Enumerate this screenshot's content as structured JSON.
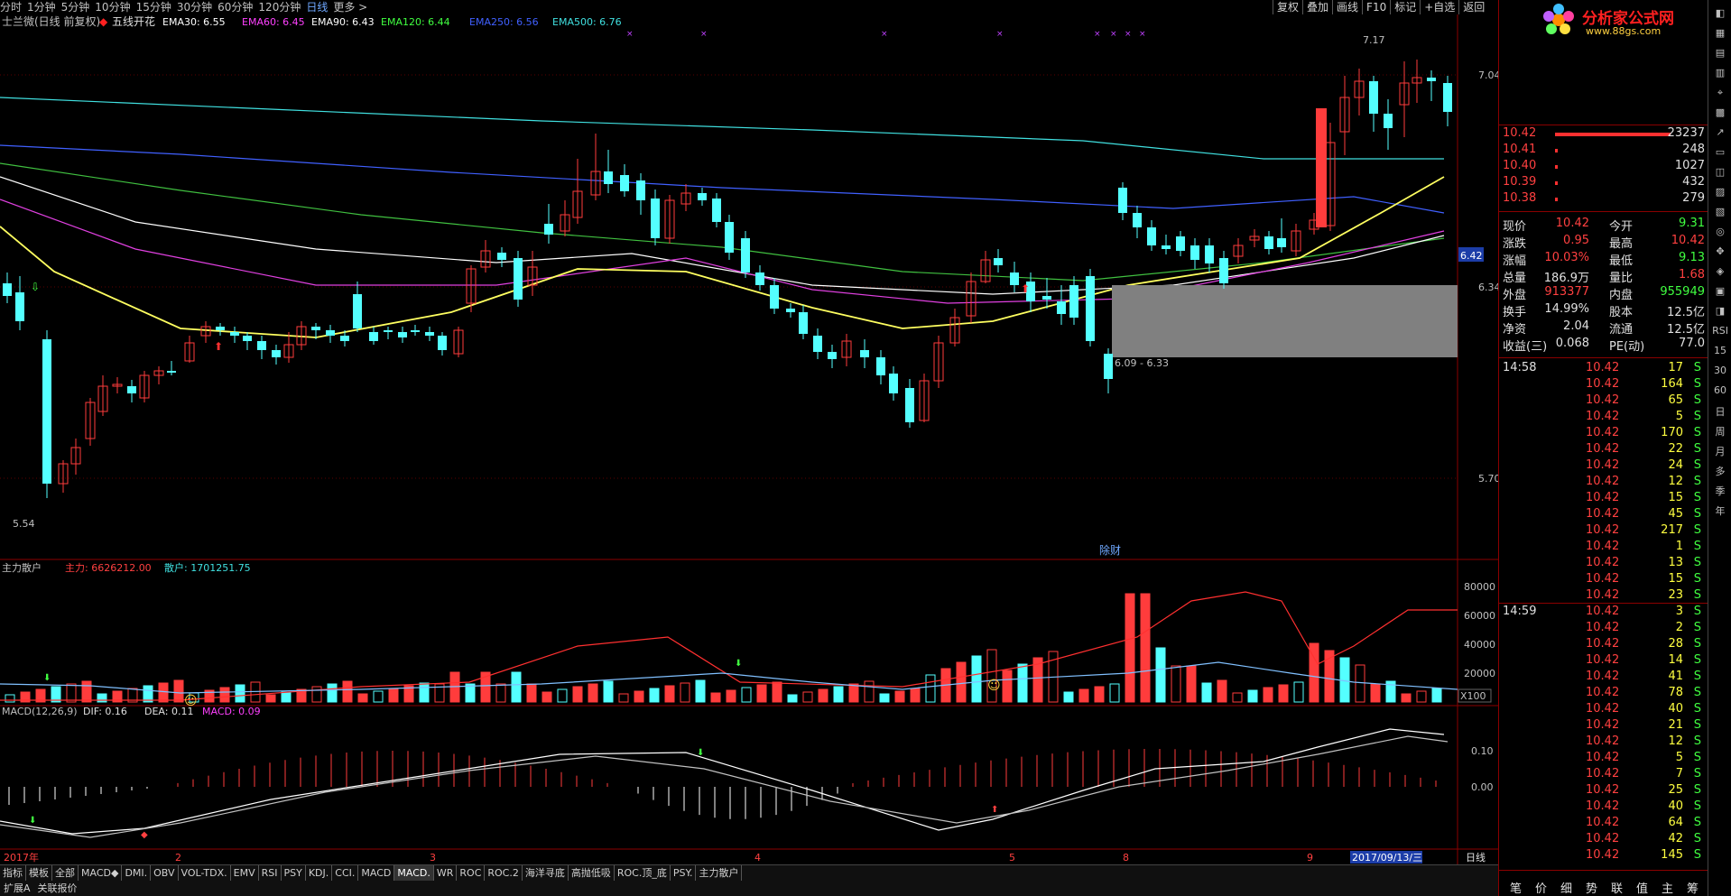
{
  "toolbar": {
    "periods": [
      "分时",
      "1分钟",
      "5分钟",
      "10分钟",
      "15分钟",
      "30分钟",
      "60分钟",
      "120分钟",
      "日线",
      "更多 >"
    ],
    "active_period": "日线",
    "right_buttons": [
      "复权",
      "叠加",
      "画线",
      "F10",
      "标记",
      "+自选",
      "返回"
    ]
  },
  "main": {
    "title": "士兰微(日线 前复权)",
    "indicator_name": "五线开花",
    "ema": [
      {
        "label": "EMA30: 6.55",
        "color": "#ffffff"
      },
      {
        "label": "EMA60: 6.45",
        "color": "#ff40ff"
      },
      {
        "label": "EMA90: 6.43",
        "color": "#ffffff"
      },
      {
        "label": "EMA120: 6.44",
        "color": "#40ff40"
      },
      {
        "label": "EMA250: 6.56",
        "color": "#4060ff"
      },
      {
        "label": "EMA500: 6.76",
        "color": "#40e0e0"
      }
    ],
    "price_ticks": [
      "7.04",
      "6.34",
      "5.70"
    ],
    "current_price_tag": "6.42",
    "low_label": "5.54",
    "high_label": "7.17",
    "range_label": "6.09 - 6.33",
    "event_label": "除财"
  },
  "sub1": {
    "name": "主力散户",
    "zhuli": "主力: 6626212.00",
    "sanhu": "散户: 1701251.75",
    "ticks": [
      "80000",
      "60000",
      "40000",
      "20000"
    ],
    "unit": "X100"
  },
  "sub2": {
    "name": "MACD(12,26,9)",
    "dif": "DIF: 0.16",
    "dea": "DEA: 0.11",
    "macd": "MACD: 0.09",
    "ticks": [
      "0.10",
      "0.00"
    ]
  },
  "xaxis": {
    "labels": [
      {
        "text": "2017年"
      },
      {
        "text": "2"
      },
      {
        "text": "3"
      },
      {
        "text": "4"
      },
      {
        "text": "5"
      },
      {
        "text": "8"
      },
      {
        "text": "9"
      }
    ],
    "cursor_date": "2017/09/13/三",
    "period_label": "日线"
  },
  "bottom_tabs": [
    "指标",
    "模板",
    "全部",
    "MACD◆",
    "DMI.",
    "OBV",
    "VOL-TDX.",
    "EMV",
    "RSI",
    "PSY",
    "KDJ.",
    "CCI.",
    "MACD",
    "MACD.",
    "WR",
    "ROC",
    "ROC.2",
    "海洋寻底",
    "高抛低吸",
    "ROC.顶_底",
    "PSY.",
    "主力散户"
  ],
  "bottom2": [
    "扩展A",
    "关联报价"
  ],
  "quote": {
    "logo_text": "分析家公式网",
    "logo_url": "www.88gs.com",
    "sell_orders": [
      {
        "price": "10.42",
        "vol": "23237"
      },
      {
        "price": "10.41",
        "vol": "248"
      },
      {
        "price": "10.40",
        "vol": "1027"
      },
      {
        "price": "10.39",
        "vol": "432"
      },
      {
        "price": "10.38",
        "vol": "279"
      }
    ],
    "stats": [
      {
        "k1": "现价",
        "v1": "10.42",
        "k2": "今开",
        "v2": "9.31"
      },
      {
        "k1": "涨跌",
        "v1": "0.95",
        "k2": "最高",
        "v2": "10.42"
      },
      {
        "k1": "涨幅",
        "v1": "10.03%",
        "k2": "最低",
        "v2": "9.13"
      },
      {
        "k1": "总量",
        "v1": "186.9万",
        "k2": "量比",
        "v2": "1.68"
      },
      {
        "k1": "外盘",
        "v1": "913377",
        "k2": "内盘",
        "v2": "955949"
      },
      {
        "k1": "换手",
        "v1": "14.99%",
        "k2": "股本",
        "v2": "12.5亿"
      },
      {
        "k1": "净资",
        "v1": "2.04",
        "k2": "流通",
        "v2": "12.5亿"
      },
      {
        "k1": "收益(三)",
        "v1": "0.068",
        "k2": "PE(动)",
        "v2": "77.0"
      }
    ],
    "ticks_1458_time": "14:58",
    "ticks_1458": [
      {
        "p": "10.42",
        "v": "17"
      },
      {
        "p": "10.42",
        "v": "164"
      },
      {
        "p": "10.42",
        "v": "65"
      },
      {
        "p": "10.42",
        "v": "5"
      },
      {
        "p": "10.42",
        "v": "170"
      },
      {
        "p": "10.42",
        "v": "22"
      },
      {
        "p": "10.42",
        "v": "24"
      },
      {
        "p": "10.42",
        "v": "12"
      },
      {
        "p": "10.42",
        "v": "15"
      },
      {
        "p": "10.42",
        "v": "45"
      },
      {
        "p": "10.42",
        "v": "217"
      },
      {
        "p": "10.42",
        "v": "1"
      },
      {
        "p": "10.42",
        "v": "13"
      },
      {
        "p": "10.42",
        "v": "15"
      },
      {
        "p": "10.42",
        "v": "23"
      }
    ],
    "ticks_1459_time": "14:59",
    "ticks_1459": [
      {
        "p": "10.42",
        "v": "3"
      },
      {
        "p": "10.42",
        "v": "2"
      },
      {
        "p": "10.42",
        "v": "28"
      },
      {
        "p": "10.42",
        "v": "14"
      },
      {
        "p": "10.42",
        "v": "41"
      },
      {
        "p": "10.42",
        "v": "78"
      },
      {
        "p": "10.42",
        "v": "40"
      },
      {
        "p": "10.42",
        "v": "21"
      },
      {
        "p": "10.42",
        "v": "12"
      },
      {
        "p": "10.42",
        "v": "5"
      },
      {
        "p": "10.42",
        "v": "7"
      },
      {
        "p": "10.42",
        "v": "25"
      },
      {
        "p": "10.42",
        "v": "40"
      },
      {
        "p": "10.42",
        "v": "64"
      },
      {
        "p": "10.42",
        "v": "42"
      },
      {
        "p": "10.42",
        "v": "145"
      }
    ],
    "tick_flag": "S",
    "footer_tabs": [
      "笔",
      "价",
      "细",
      "势",
      "联",
      "值",
      "主",
      "筹"
    ]
  },
  "right_icons": [
    "RSI",
    "15",
    "30",
    "60",
    "日",
    "周",
    "月",
    "多",
    "季",
    "年"
  ],
  "colors": {
    "up": "#ff3c3c",
    "down": "#54ffff",
    "bg": "#000000",
    "grid": "#8b0000"
  }
}
